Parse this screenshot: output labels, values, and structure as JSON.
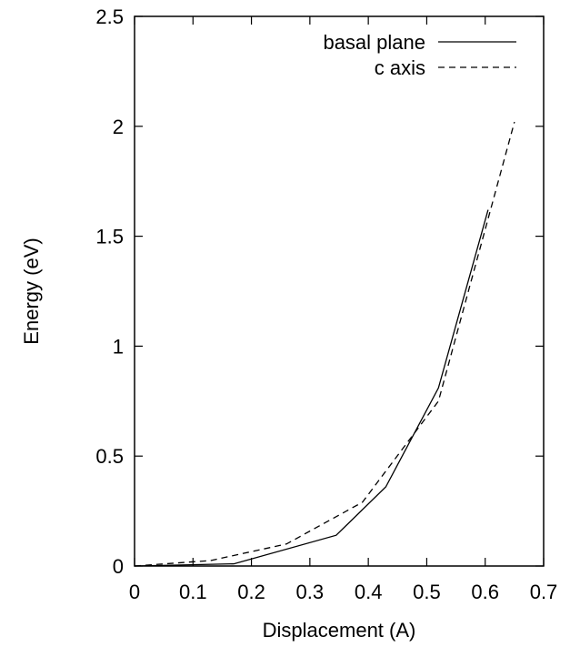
{
  "chart_data": {
    "type": "line",
    "title": "",
    "xlabel": "Displacement (A)",
    "ylabel": "Energy (eV)",
    "xlim": [
      0,
      0.7
    ],
    "ylim": [
      0,
      2.5
    ],
    "xticks": [
      "0",
      "0.1",
      "0.2",
      "0.3",
      "0.4",
      "0.5",
      "0.6",
      "0.7"
    ],
    "yticks": [
      "0",
      "0.5",
      "1",
      "1.5",
      "2",
      "2.5"
    ],
    "grid": false,
    "legend_position": "top-right",
    "series": [
      {
        "name": "basal plane",
        "style": "solid",
        "color": "#000000",
        "x": [
          0,
          0.17,
          0.345,
          0.43,
          0.52,
          0.605
        ],
        "y": [
          0,
          0.01,
          0.14,
          0.36,
          0.81,
          1.62
        ]
      },
      {
        "name": "c axis",
        "style": "dashed",
        "color": "#000000",
        "x": [
          0,
          0.13,
          0.26,
          0.39,
          0.52,
          0.65
        ],
        "y": [
          0,
          0.025,
          0.1,
          0.29,
          0.75,
          2.02
        ]
      }
    ]
  }
}
